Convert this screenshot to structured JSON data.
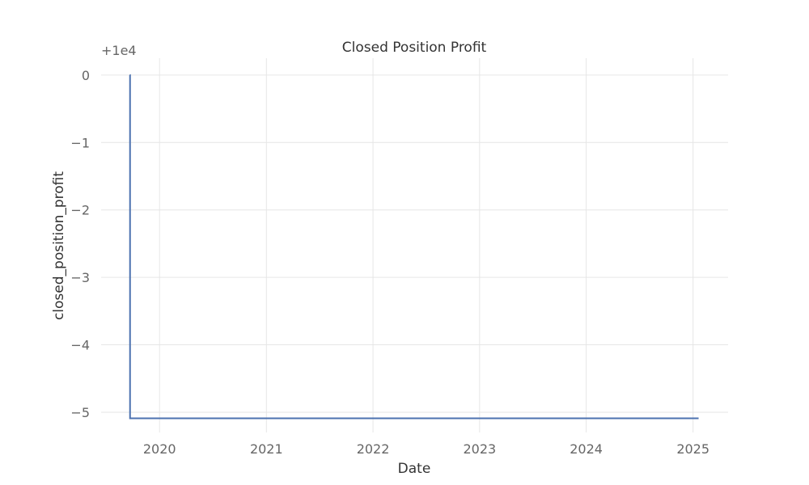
{
  "chart_data": {
    "type": "line",
    "title": "Closed Position Profit",
    "xlabel": "Date",
    "ylabel": "closed_position_profit",
    "y_offset_label": "+1e4",
    "xlim": [
      "2019-06-15",
      "2025-05-01"
    ],
    "ylim": [
      -5.3,
      0.25
    ],
    "x_ticks": [
      "2020-01-01",
      "2021-01-01",
      "2022-01-01",
      "2023-01-01",
      "2024-01-01",
      "2025-01-01"
    ],
    "x_tick_labels": [
      "2020",
      "2021",
      "2022",
      "2023",
      "2024",
      "2025"
    ],
    "y_ticks": [
      0,
      -1,
      -2,
      -3,
      -4,
      -5
    ],
    "y_tick_labels": [
      "0",
      "−1",
      "−2",
      "−3",
      "−4",
      "−5"
    ],
    "grid": true,
    "line_step": "post",
    "series": [
      {
        "color": "#4c72b0",
        "points": [
          {
            "x": "2019-09-21",
            "y": 0
          },
          {
            "x": "2019-09-22",
            "y": -5.09
          },
          {
            "x": "2025-01-20",
            "y": -5.09
          }
        ]
      }
    ]
  }
}
